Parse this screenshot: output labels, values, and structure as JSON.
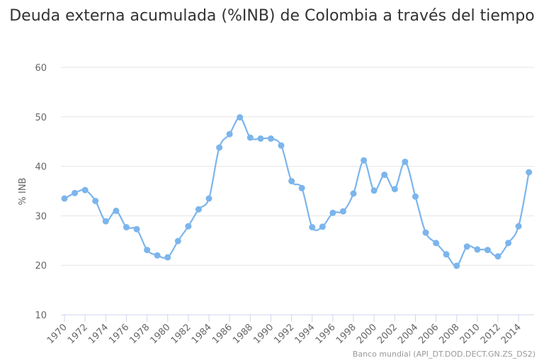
{
  "title": "Deuda externa acumulada (%INB) de Colombia a través del tiempo",
  "credit": "Banco mundial (API_DT.DOD.DECT.GN.ZS_DS2)",
  "colors": {
    "series": "#7cb5ec",
    "grid": "#e6e6e6",
    "axis": "#ccd6eb",
    "label": "#666666"
  },
  "chart_data": {
    "type": "line",
    "title": "Deuda externa acumulada (%INB) de Colombia a través del tiempo",
    "xlabel": "",
    "ylabel": "% INB",
    "ylim": [
      10,
      60
    ],
    "yticks": [
      10,
      20,
      30,
      40,
      50,
      60
    ],
    "xticks": [
      1970,
      1972,
      1974,
      1976,
      1978,
      1980,
      1982,
      1984,
      1986,
      1988,
      1990,
      1992,
      1994,
      1996,
      1998,
      2000,
      2002,
      2004,
      2006,
      2008,
      2010,
      2012,
      2014
    ],
    "grid": true,
    "legend": "none",
    "x": [
      1970,
      1971,
      1972,
      1973,
      1974,
      1975,
      1976,
      1977,
      1978,
      1979,
      1980,
      1981,
      1982,
      1983,
      1984,
      1985,
      1986,
      1987,
      1988,
      1989,
      1990,
      1991,
      1992,
      1993,
      1994,
      1995,
      1996,
      1997,
      1998,
      1999,
      2000,
      2001,
      2002,
      2003,
      2004,
      2005,
      2006,
      2007,
      2008,
      2009,
      2010,
      2011,
      2012,
      2013,
      2014,
      2015
    ],
    "series": [
      {
        "values": [
          33.5,
          34.6,
          35.2,
          33.0,
          28.9,
          31.0,
          27.7,
          27.3,
          23.1,
          22.0,
          21.6,
          24.9,
          27.9,
          31.3,
          33.5,
          43.8,
          46.5,
          49.9,
          45.8,
          45.6,
          45.6,
          44.2,
          37.0,
          35.6,
          27.7,
          27.8,
          30.6,
          30.9,
          34.5,
          41.2,
          35.1,
          38.3,
          35.4,
          40.9,
          33.9,
          26.6,
          24.5,
          22.2,
          19.9,
          23.8,
          23.2,
          23.1,
          21.8,
          24.5,
          27.9,
          38.8
        ]
      }
    ]
  }
}
